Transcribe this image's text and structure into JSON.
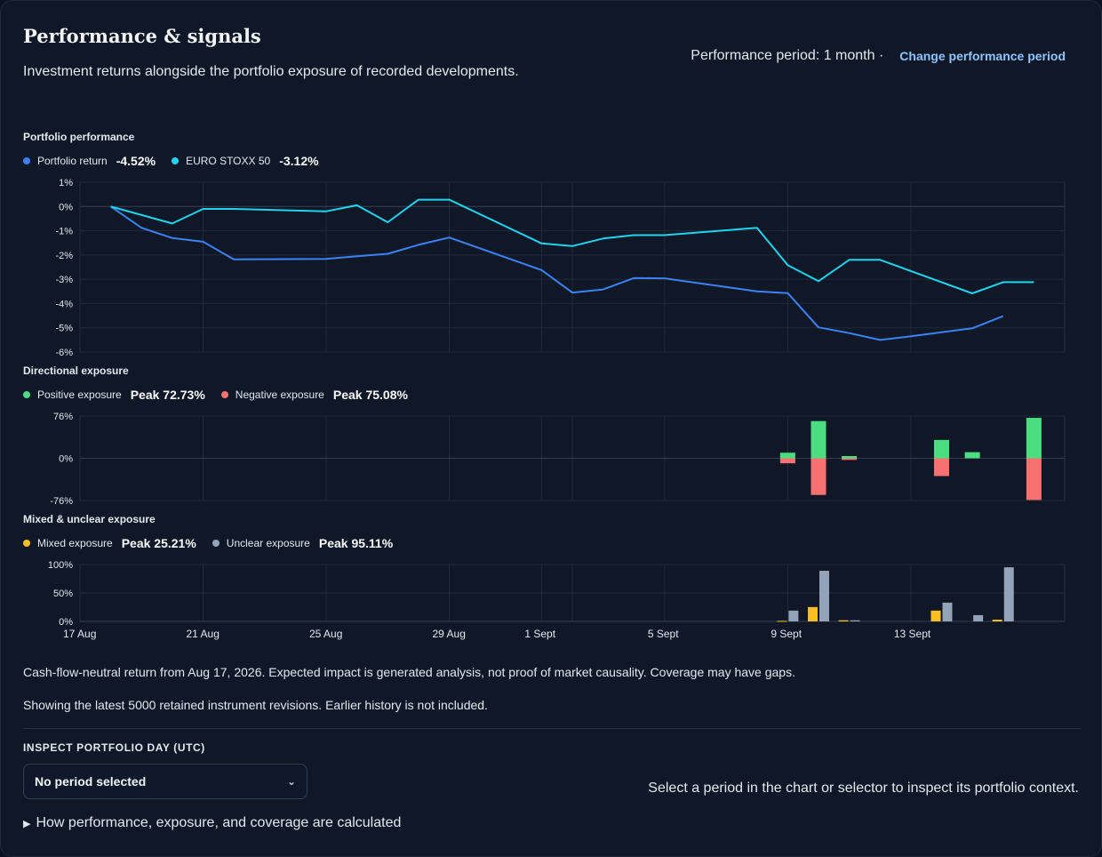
{
  "header": {
    "title": "Performance & signals",
    "subtitle": "Investment returns alongside the portfolio exposure of recorded developments.",
    "period_text": "Performance period: 1 month ·",
    "change_period_label": "Change performance period"
  },
  "sections": {
    "performance_label": "Portfolio performance",
    "directional_label": "Directional exposure",
    "mixed_label": "Mixed & unclear exposure"
  },
  "legends": {
    "performance": [
      {
        "name": "Portfolio return",
        "value": "-4.52%",
        "color": "#3b82f6"
      },
      {
        "name": "EURO STOXX 50",
        "value": "-3.12%",
        "color": "#22d3ee"
      }
    ],
    "directional": [
      {
        "name": "Positive exposure",
        "value": "Peak 72.73%",
        "color": "#4ade80"
      },
      {
        "name": "Negative exposure",
        "value": "Peak 75.08%",
        "color": "#f87171"
      }
    ],
    "mixed": [
      {
        "name": "Mixed exposure",
        "value": "Peak 25.21%",
        "color": "#fbbf24"
      },
      {
        "name": "Unclear exposure",
        "value": "Peak 95.11%",
        "color": "#94a3b8"
      }
    ]
  },
  "chart_data": [
    {
      "type": "line",
      "title": "Portfolio performance",
      "ylim": [
        -6,
        1
      ],
      "yticks": [
        "1%",
        "0%",
        "-1%",
        "-2%",
        "-3%",
        "-4%",
        "-5%",
        "-6%"
      ],
      "xlim": [
        -1,
        31
      ],
      "grid": true,
      "series": [
        {
          "name": "Portfolio return",
          "color": "#3b82f6",
          "points": [
            [
              0,
              0
            ],
            [
              1,
              -0.88
            ],
            [
              2,
              -1.3
            ],
            [
              3,
              -1.45
            ],
            [
              4,
              -2.18
            ],
            [
              7,
              -2.16
            ],
            [
              8,
              -2.05
            ],
            [
              9,
              -1.95
            ],
            [
              10,
              -1.58
            ],
            [
              11,
              -1.28
            ],
            [
              14,
              -2.62
            ],
            [
              15,
              -3.55
            ],
            [
              16,
              -3.42
            ],
            [
              17,
              -2.95
            ],
            [
              18,
              -2.96
            ],
            [
              21,
              -3.5
            ],
            [
              22,
              -3.57
            ],
            [
              23,
              -4.98
            ],
            [
              24,
              -5.22
            ],
            [
              25,
              -5.5
            ],
            [
              26,
              -5.35
            ],
            [
              28,
              -5.02
            ],
            [
              29,
              -4.52
            ]
          ]
        },
        {
          "name": "EURO STOXX 50",
          "color": "#22d3ee",
          "points": [
            [
              0,
              0
            ],
            [
              2,
              -0.7
            ],
            [
              3,
              -0.1
            ],
            [
              4,
              -0.1
            ],
            [
              7,
              -0.2
            ],
            [
              8,
              0.05
            ],
            [
              9,
              -0.65
            ],
            [
              10,
              0.28
            ],
            [
              11,
              0.28
            ],
            [
              14,
              -1.52
            ],
            [
              15,
              -1.63
            ],
            [
              16,
              -1.32
            ],
            [
              17,
              -1.18
            ],
            [
              18,
              -1.18
            ],
            [
              21,
              -0.88
            ],
            [
              22,
              -2.42
            ],
            [
              23,
              -3.08
            ],
            [
              24,
              -2.2
            ],
            [
              25,
              -2.2
            ],
            [
              28,
              -3.58
            ],
            [
              29,
              -3.12
            ],
            [
              30,
              -3.12
            ]
          ]
        }
      ]
    },
    {
      "type": "bar",
      "title": "Directional exposure",
      "ylim": [
        -76,
        76
      ],
      "yticks": [
        "76%",
        "0%",
        "-76%"
      ],
      "series": [
        {
          "name": "Positive exposure",
          "color": "#4ade80",
          "points": [
            [
              22,
              10
            ],
            [
              23,
              67
            ],
            [
              24,
              4
            ],
            [
              27,
              33
            ],
            [
              28,
              11
            ],
            [
              30,
              72.73
            ]
          ]
        },
        {
          "name": "Negative exposure",
          "color": "#f87171",
          "points": [
            [
              22,
              -9
            ],
            [
              23,
              -66
            ],
            [
              24,
              -3
            ],
            [
              27,
              -32
            ],
            [
              30,
              -75.08
            ]
          ]
        }
      ]
    },
    {
      "type": "bar",
      "title": "Mixed & unclear exposure",
      "ylim": [
        0,
        100
      ],
      "yticks": [
        "100%",
        "50%",
        "0%"
      ],
      "series": [
        {
          "name": "Mixed exposure",
          "color": "#fbbf24",
          "points": [
            [
              22,
              1
            ],
            [
              23,
              25.21
            ],
            [
              24,
              2
            ],
            [
              27,
              19
            ],
            [
              29,
              3
            ]
          ]
        },
        {
          "name": "Unclear exposure",
          "color": "#94a3b8",
          "points": [
            [
              22,
              19
            ],
            [
              23,
              89
            ],
            [
              24,
              2
            ],
            [
              27,
              33
            ],
            [
              28,
              11
            ],
            [
              29,
              95.11
            ]
          ]
        }
      ]
    }
  ],
  "x_axis": {
    "ticks": [
      {
        "day": -1,
        "label": "17 Aug"
      },
      {
        "day": 3,
        "label": "21 Aug"
      },
      {
        "day": 7,
        "label": "25 Aug"
      },
      {
        "day": 11,
        "label": "29 Aug"
      },
      {
        "day": 14,
        "label": "1 Sept"
      },
      {
        "day": 18,
        "label": "5 Sept"
      },
      {
        "day": 22,
        "label": "9 Sept"
      },
      {
        "day": 26,
        "label": "13 Sept"
      }
    ],
    "gridlines": [
      -1,
      3,
      7,
      11,
      14,
      15,
      18,
      22,
      26
    ]
  },
  "footer": {
    "note1": "Cash-flow-neutral return from Aug 17, 2026. Expected impact is generated analysis, not proof of market causality. Coverage may have gaps.",
    "note2": "Showing the latest 5000 retained instrument revisions. Earlier history is not included."
  },
  "inspect": {
    "label": "INSPECT PORTFOLIO DAY (UTC)",
    "select_value": "No period selected",
    "hint": "Select a period in the chart or selector to inspect its portfolio context.",
    "details_label": "How performance, exposure, and coverage are calculated"
  }
}
